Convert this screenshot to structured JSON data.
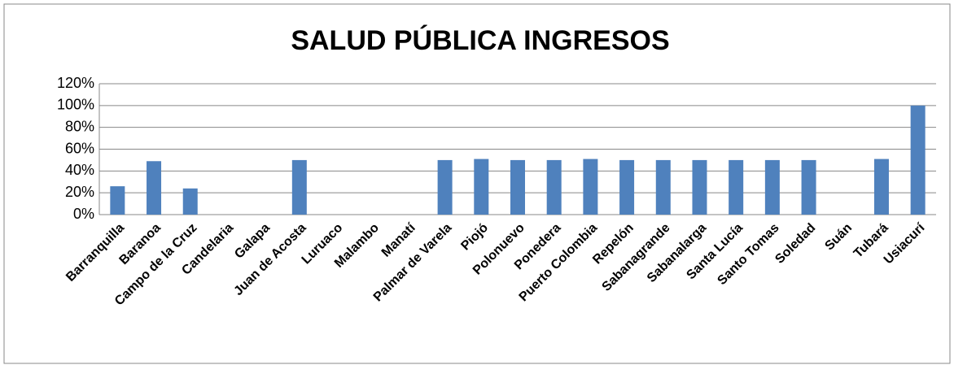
{
  "chart_data": {
    "type": "bar",
    "title": "SALUD PÚBLICA INGRESOS",
    "categories": [
      "Barranquilla",
      "Baranoa",
      "Campo de la Cruz",
      "Candelaria",
      "Galapa",
      "Juan de Acosta",
      "Luruaco",
      "Malambo",
      "Manatí",
      "Palmar de Varela",
      "Piojó",
      "Polonuevo",
      "Ponedera",
      "Puerto Colombia",
      "Repelón",
      "Sabanagrande",
      "Sabanalarga",
      "Santa Lucía",
      "Santo Tomas",
      "Soledad",
      "Suán",
      "Tubará",
      "Usiacurí"
    ],
    "values": [
      26,
      49,
      24,
      0,
      0,
      50,
      0,
      0,
      0,
      50,
      51,
      50,
      50,
      51,
      50,
      50,
      50,
      50,
      50,
      50,
      0,
      51,
      100
    ],
    "color": "#4f81bd",
    "ylim": [
      0,
      120
    ],
    "yticks": [
      {
        "value": 0,
        "label": "0%"
      },
      {
        "value": 20,
        "label": "20%"
      },
      {
        "value": 40,
        "label": "40%"
      },
      {
        "value": 60,
        "label": "60%"
      },
      {
        "value": 80,
        "label": "80%"
      },
      {
        "value": 100,
        "label": "100%"
      },
      {
        "value": 120,
        "label": "120%"
      }
    ],
    "grid": true
  }
}
